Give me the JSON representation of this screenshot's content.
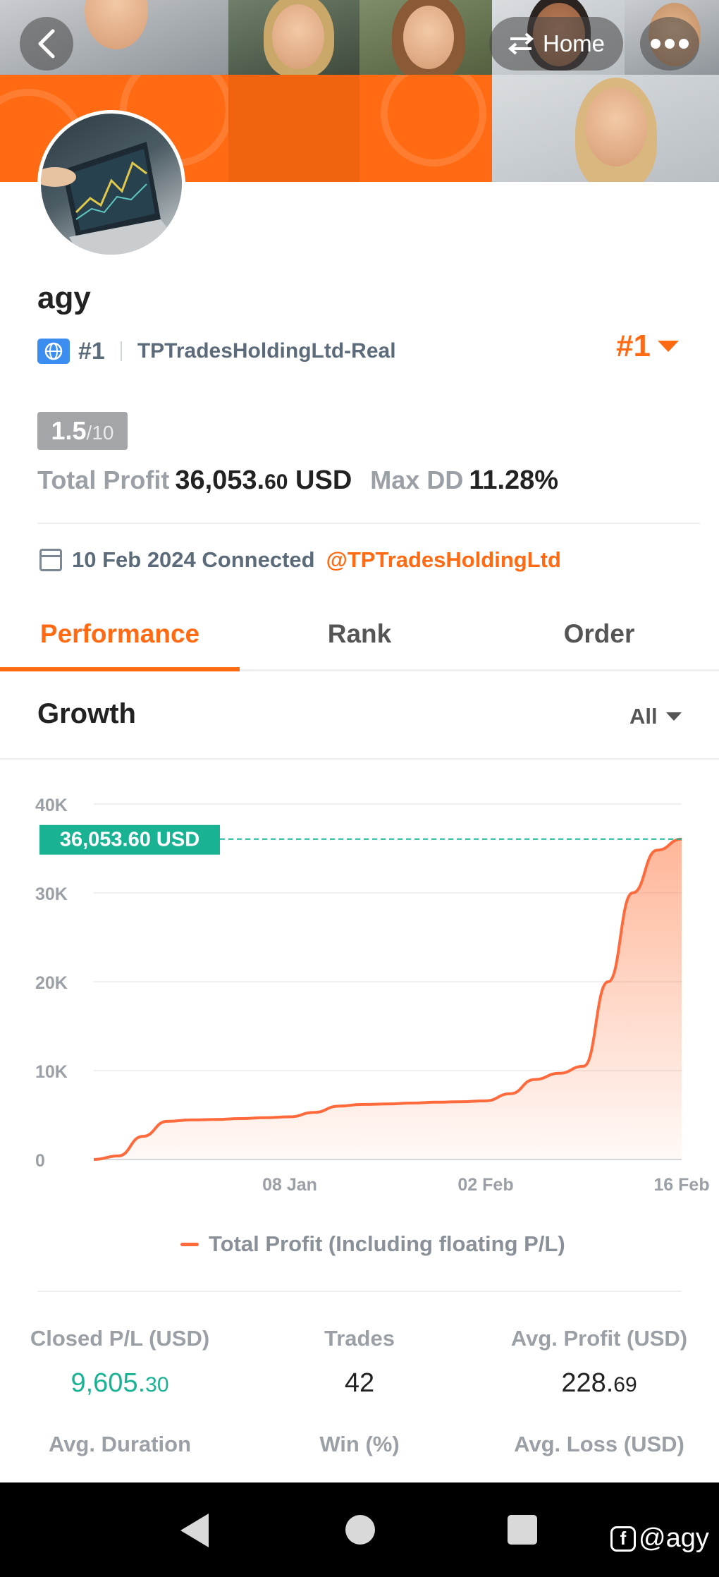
{
  "header": {
    "home_label": "Home"
  },
  "profile": {
    "username": "agy",
    "rank_badge": "#1",
    "server": "TPTradesHoldingLtd-Real",
    "rank_right": "#1",
    "score_main": "1.5",
    "score_denominator": "/10",
    "total_profit_label": "Total Profit",
    "total_profit_int": "36,053.",
    "total_profit_dec": "60",
    "total_profit_unit": " USD",
    "max_dd_label": "Max DD",
    "max_dd_value": "11.28%",
    "connected_text": "10 Feb 2024 Connected",
    "connected_handle": "@TPTradesHoldingLtd"
  },
  "tabs": [
    {
      "label": "Performance",
      "active": true
    },
    {
      "label": "Rank",
      "active": false
    },
    {
      "label": "Order",
      "active": false
    }
  ],
  "growth": {
    "title": "Growth",
    "range": "All"
  },
  "chart_data": {
    "type": "area",
    "y_ticks": [
      "40K",
      "30K",
      "20K",
      "10K",
      "0"
    ],
    "ylim": [
      0,
      40000
    ],
    "x_ticks": [
      {
        "label": "08 Jan",
        "x": 32
      },
      {
        "label": "02 Feb",
        "x": 64
      },
      {
        "label": "16 Feb",
        "x": 96
      }
    ],
    "xlim": [
      0,
      96
    ],
    "series": [
      {
        "name": "Total Profit (Including floating P/L)",
        "color": "#ff6a3d",
        "points": [
          [
            0,
            0
          ],
          [
            4,
            400
          ],
          [
            8,
            2600
          ],
          [
            12,
            4300
          ],
          [
            16,
            4450
          ],
          [
            20,
            4500
          ],
          [
            24,
            4600
          ],
          [
            28,
            4700
          ],
          [
            32,
            4800
          ],
          [
            36,
            5300
          ],
          [
            40,
            6000
          ],
          [
            44,
            6200
          ],
          [
            48,
            6250
          ],
          [
            52,
            6350
          ],
          [
            56,
            6450
          ],
          [
            60,
            6500
          ],
          [
            64,
            6600
          ],
          [
            68,
            7400
          ],
          [
            72,
            9000
          ],
          [
            76,
            9700
          ],
          [
            80,
            10500
          ],
          [
            84,
            20000
          ],
          [
            88,
            30000
          ],
          [
            92,
            34800
          ],
          [
            96,
            36053.6
          ]
        ]
      }
    ],
    "current_value_label": "36,053.60 USD",
    "current_value": 36053.6,
    "current_label_color": "#19b394"
  },
  "metrics": [
    {
      "label": "Closed P/L (USD)",
      "int": "9,605.",
      "dec": "30",
      "green": true
    },
    {
      "label": "Trades",
      "int": "42",
      "dec": "",
      "green": false
    },
    {
      "label": "Avg. Profit (USD)",
      "int": "228.",
      "dec": "69",
      "green": false
    },
    {
      "label": "Avg. Duration",
      "int": "",
      "dec": "",
      "green": false
    },
    {
      "label": "Win (%)",
      "int": "",
      "dec": "",
      "green": false
    },
    {
      "label": "Avg. Loss (USD)",
      "int": "",
      "dec": "",
      "green": false
    }
  ],
  "watermark": {
    "logo_glyph": "f",
    "handle": "@agy"
  }
}
